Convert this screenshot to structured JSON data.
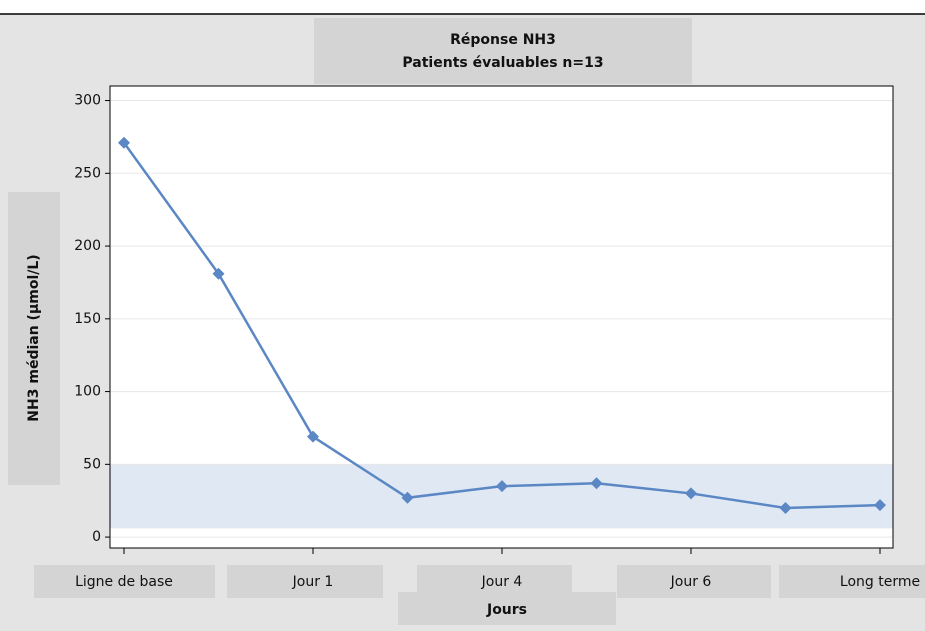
{
  "chart_data": {
    "type": "line",
    "title": "Réponse NH3",
    "subtitle": "Patients évaluables n=13",
    "x_label": "Jours",
    "y_label": "NH3 médian (µmol/L)",
    "categories": [
      "Ligne de base",
      null,
      "Jour 1",
      null,
      "Jour 4",
      null,
      "Jour 6",
      null,
      "Long terme"
    ],
    "series": [
      {
        "name": "NH3 médian",
        "color": "#5b87c5",
        "values": [
          271,
          181,
          69,
          27,
          35,
          37,
          30,
          20,
          22
        ]
      }
    ],
    "reference_band": [
      6,
      50
    ],
    "reference_band_color": "#dfe8f3",
    "ylim": [
      -7.5,
      310
    ],
    "yticks": [
      0,
      50,
      100,
      150,
      200,
      250,
      300
    ],
    "grid": true
  }
}
